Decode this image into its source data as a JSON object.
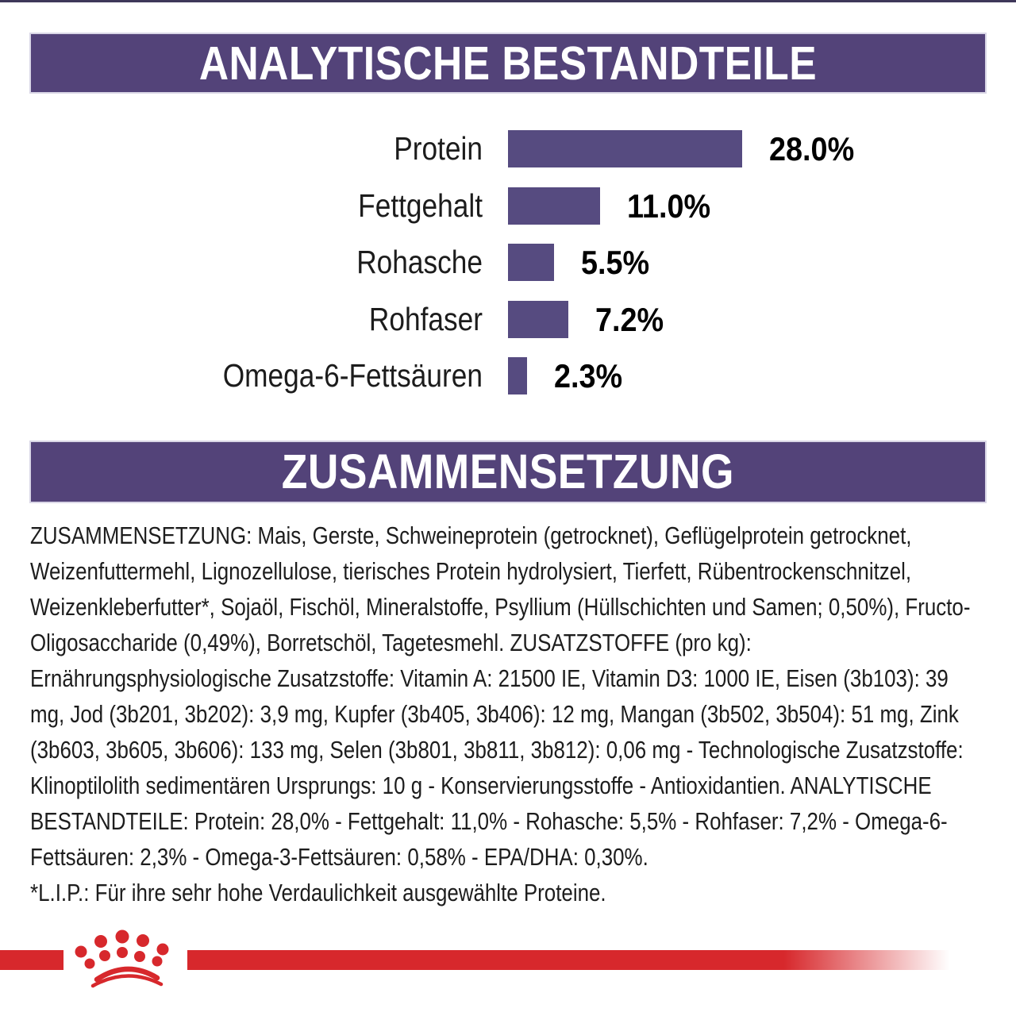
{
  "page": {
    "background": "#ffffff",
    "top_rule_color": "#3e3759"
  },
  "theme": {
    "header_purple": "#534379",
    "bar_purple": "#564B80",
    "brand_red": "#D7282C",
    "header_text_color": "#ffffff",
    "body_text_color": "#1d1d1d"
  },
  "sections": {
    "analytical": {
      "title": "ANALYTISCHE BESTANDTEILE"
    },
    "composition": {
      "title": "ZUSAMMENSETZUNG"
    }
  },
  "chart_data": {
    "type": "bar",
    "orientation": "horizontal",
    "title": "ANALYTISCHE BESTANDTEILE",
    "categories": [
      "Protein",
      "Fettgehalt",
      "Rohasche",
      "Rohfaser",
      "Omega-6-Fettsäuren"
    ],
    "values": [
      28.0,
      11.0,
      5.5,
      7.2,
      2.3
    ],
    "value_labels": [
      "28.0%",
      "11.0%",
      "5.5%",
      "7.2%",
      "2.3%"
    ],
    "unit": "%",
    "xlim": [
      0,
      30
    ],
    "bar_color": "#564B80",
    "grid": false,
    "axes_visible": false,
    "value_label_position": "right-of-bar"
  },
  "composition": {
    "text": "ZUSAMMENSETZUNG: Mais, Gerste, Schweineprotein (getrocknet), Geflügelprotein getrocknet, Weizenfuttermehl, Lignozellulose, tierisches Protein hydrolysiert, Tierfett, Rübentrockenschnitzel, Weizenkleberfutter*, Sojaöl, Fischöl, Mineralstoffe, Psyllium (Hüllschichten und Samen; 0,50%), Fructo-Oligosaccharide (0,49%), Borretschöl, Tagetesmehl. ZUSATZSTOFFE (pro kg): Ernährungsphysiologische Zusatzstoffe: Vitamin A: 21500 IE, Vitamin D3: 1000 IE, Eisen (3b103): 39 mg, Jod (3b201, 3b202): 3,9 mg, Kupfer (3b405, 3b406): 12 mg, Mangan (3b502, 3b504): 51 mg, Zink (3b603, 3b605, 3b606): 133 mg, Selen (3b801, 3b811, 3b812): 0,06 mg - Technologische Zusatzstoffe: Klinoptilolith sedimentären Ursprungs: 10 g - Konservierungsstoffe - Antioxidantien. ANALYTISCHE BESTANDTEILE: Protein: 28,0% - Fettgehalt: 11,0% - Rohasche: 5,5% - Rohfaser: 7,2% - Omega-6-Fettsäuren: 2,3% - Omega-3-Fettsäuren: 0,58% - EPA/DHA: 0,30%.",
    "footnote": "*L.I.P.: Für ihre sehr hohe Verdaulichkeit ausgewählte Proteine."
  },
  "footer": {
    "logo_icon": "crown-paw-logo",
    "band_color": "#D7282C"
  }
}
